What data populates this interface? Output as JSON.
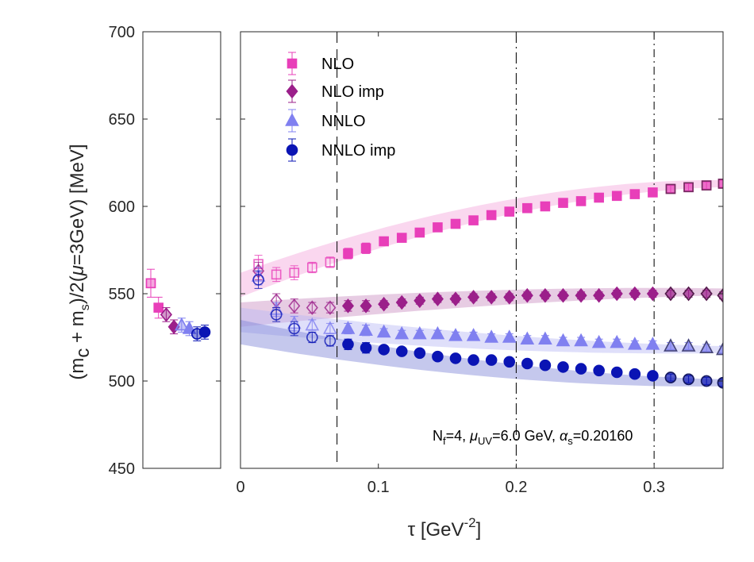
{
  "chart_data": {
    "type": "scatter",
    "xlabel": {
      "main": "τ [GeV",
      "sup": "-2",
      "close": "]"
    },
    "ylabel": {
      "p1": "(m",
      "s1": "c",
      "p2": " + m",
      "s2": "s",
      "p3": ")/2(",
      "mu": "μ",
      "p4": "=3GeV) [MeV]"
    },
    "xlim": [
      0,
      0.35
    ],
    "ylim": [
      450,
      700
    ],
    "x_ticks": [
      "0",
      "0.1",
      "0.2",
      "0.3"
    ],
    "x_tick_values": [
      0,
      0.1,
      0.2,
      0.3
    ],
    "y_ticks": [
      "450",
      "500",
      "550",
      "600",
      "650",
      "700"
    ],
    "y_tick_values": [
      450,
      500,
      550,
      600,
      650,
      700
    ],
    "vertical_lines": [
      0.07,
      0.2,
      0.3
    ],
    "annotation": {
      "n": "N",
      "nsub": "f",
      "t1": "=4, ",
      "mu": "μ",
      "musub": "UV",
      "t2": "=6.0 GeV, ",
      "alpha": "α",
      "asub": "s",
      "t3": "=0.20160"
    },
    "grid": false,
    "legend_position": "top-left",
    "series": [
      {
        "name": "NLO",
        "marker": "square",
        "color": "#e83fb9",
        "band_color": "#f3a6dc",
        "fit_start": 555,
        "fit_end": 613,
        "x": [
          0.013,
          0.026,
          0.039,
          0.052,
          0.065,
          0.078,
          0.091,
          0.104,
          0.117,
          0.13,
          0.143,
          0.156,
          0.169,
          0.182,
          0.195,
          0.208,
          0.221,
          0.234,
          0.247,
          0.26,
          0.273,
          0.286,
          0.299,
          0.312,
          0.325,
          0.338,
          0.35
        ],
        "y": [
          567,
          561,
          562,
          565,
          568,
          573,
          576,
          580,
          582,
          585,
          588,
          590,
          592,
          595,
          597,
          599,
          600,
          602,
          603,
          605,
          606,
          607,
          608,
          610,
          611,
          612,
          613
        ],
        "err": [
          5,
          4,
          4,
          3,
          3,
          3,
          3,
          2,
          2,
          2,
          2,
          2,
          2,
          2,
          2,
          2,
          2,
          2,
          2,
          2,
          2,
          2,
          2,
          2,
          2,
          2,
          2
        ]
      },
      {
        "name": "NLO imp",
        "marker": "diamond",
        "color": "#9b1f8a",
        "band_color": "#c98ec0",
        "fit_start": 538,
        "fit_end": 551,
        "x": [
          0.013,
          0.026,
          0.039,
          0.052,
          0.065,
          0.078,
          0.091,
          0.104,
          0.117,
          0.13,
          0.143,
          0.156,
          0.169,
          0.182,
          0.195,
          0.208,
          0.221,
          0.234,
          0.247,
          0.26,
          0.273,
          0.286,
          0.299,
          0.312,
          0.325,
          0.338,
          0.35
        ],
        "y": [
          563,
          546,
          543,
          542,
          542,
          543,
          543,
          544,
          545,
          546,
          547,
          547,
          548,
          548,
          548,
          549,
          549,
          549,
          549,
          549,
          550,
          550,
          550,
          550,
          550,
          550,
          549
        ],
        "err": [
          5,
          4,
          4,
          3,
          3,
          3,
          3,
          2,
          2,
          2,
          2,
          2,
          2,
          2,
          2,
          2,
          2,
          2,
          2,
          2,
          2,
          2,
          2,
          2,
          2,
          2,
          2
        ]
      },
      {
        "name": "NNLO",
        "marker": "triangle",
        "color": "#8080f0",
        "band_color": "#b7b7f5",
        "fit_start": 535,
        "fit_end": 518,
        "x": [
          0.013,
          0.026,
          0.039,
          0.052,
          0.065,
          0.078,
          0.091,
          0.104,
          0.117,
          0.13,
          0.143,
          0.156,
          0.169,
          0.182,
          0.195,
          0.208,
          0.221,
          0.234,
          0.247,
          0.26,
          0.273,
          0.286,
          0.299,
          0.312,
          0.325,
          0.338,
          0.35
        ],
        "y": [
          560,
          541,
          533,
          532,
          530,
          530,
          529,
          528,
          527,
          527,
          527,
          526,
          526,
          525,
          525,
          524,
          524,
          523,
          523,
          522,
          522,
          521,
          521,
          520,
          520,
          519,
          518
        ],
        "err": [
          5,
          4,
          4,
          3,
          3,
          3,
          3,
          2,
          2,
          2,
          2,
          2,
          2,
          2,
          2,
          2,
          2,
          2,
          2,
          2,
          2,
          2,
          2,
          2,
          2,
          2,
          2
        ]
      },
      {
        "name": "NNLO imp",
        "marker": "circle",
        "color": "#0a14b4",
        "band_color": "#7f86d6",
        "fit_start": 528,
        "fit_end": 499,
        "x": [
          0.013,
          0.026,
          0.039,
          0.052,
          0.065,
          0.078,
          0.091,
          0.104,
          0.117,
          0.13,
          0.143,
          0.156,
          0.169,
          0.182,
          0.195,
          0.208,
          0.221,
          0.234,
          0.247,
          0.26,
          0.273,
          0.286,
          0.299,
          0.312,
          0.325,
          0.338,
          0.35
        ],
        "y": [
          558,
          538,
          530,
          525,
          523,
          521,
          519,
          518,
          517,
          516,
          514,
          513,
          512,
          512,
          511,
          510,
          509,
          508,
          507,
          506,
          505,
          504,
          503,
          502,
          501,
          500,
          499
        ],
        "err": [
          5,
          4,
          4,
          3,
          3,
          3,
          3,
          2,
          2,
          2,
          2,
          2,
          2,
          2,
          2,
          2,
          2,
          2,
          2,
          2,
          2,
          2,
          2,
          2,
          2,
          2,
          2
        ]
      }
    ],
    "side_panel": {
      "points": [
        {
          "series": "NLO",
          "open": true,
          "y": 556,
          "err": 8
        },
        {
          "series": "NLO",
          "open": false,
          "y": 542,
          "err": 6
        },
        {
          "series": "NLO imp",
          "open": true,
          "y": 538,
          "err": 4
        },
        {
          "series": "NLO imp",
          "open": false,
          "y": 531,
          "err": 4
        },
        {
          "series": "NNLO",
          "open": true,
          "y": 532,
          "err": 4
        },
        {
          "series": "NNLO",
          "open": false,
          "y": 530,
          "err": 4
        },
        {
          "series": "NNLO imp",
          "open": true,
          "y": 527,
          "err": 4
        },
        {
          "series": "NNLO imp",
          "open": false,
          "y": 528,
          "err": 4
        }
      ]
    }
  }
}
